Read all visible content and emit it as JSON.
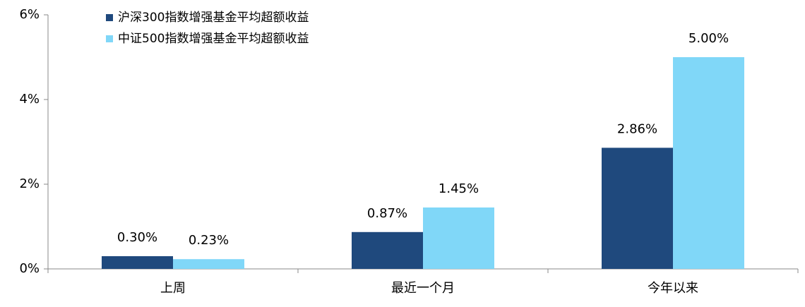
{
  "chart_data": {
    "type": "bar",
    "categories": [
      "上周",
      "最近一个月",
      "今年以来"
    ],
    "series": [
      {
        "name": "沪深300指数增强基金平均超额收益",
        "color": "#1f497d",
        "values": [
          0.3,
          0.87,
          2.86
        ],
        "value_labels": [
          "0.30%",
          "0.87%",
          "2.86%"
        ]
      },
      {
        "name": "中证500指数增强基金平均超额收益",
        "color": "#80d7f8",
        "values": [
          0.23,
          1.45,
          5.0
        ],
        "value_labels": [
          "0.23%",
          "1.45%",
          "5.00%"
        ]
      }
    ],
    "ylim": [
      0,
      6
    ],
    "yticks": [
      {
        "value": 0,
        "label": "0%"
      },
      {
        "value": 2,
        "label": "2%"
      },
      {
        "value": 4,
        "label": "4%"
      },
      {
        "value": 6,
        "label": "6%"
      }
    ],
    "grid": false,
    "legend": "top-left"
  }
}
